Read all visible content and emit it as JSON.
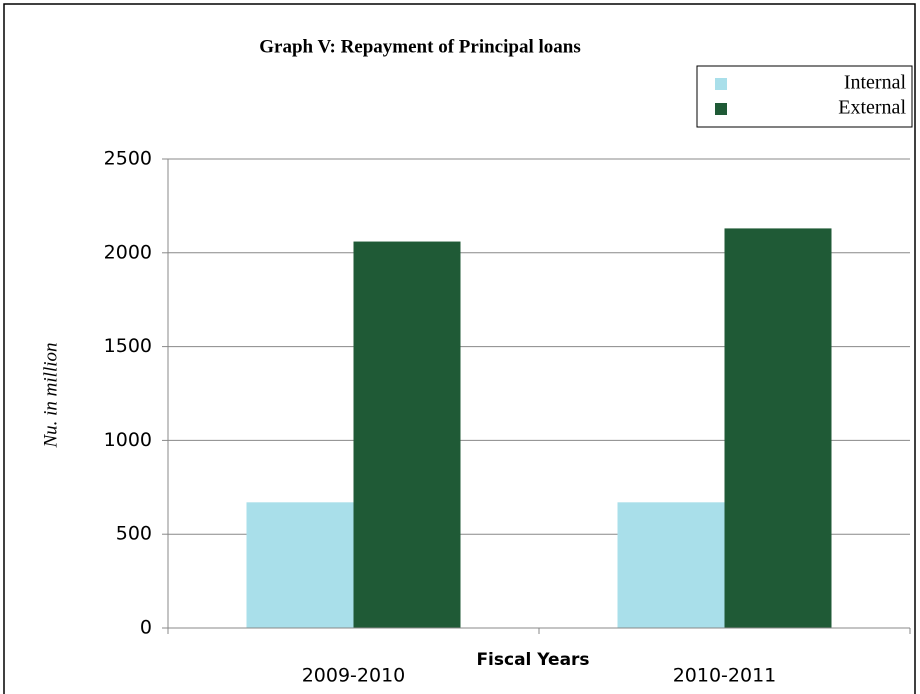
{
  "chart_data": {
    "type": "bar",
    "title": "Graph V: Repayment of Principal loans",
    "x_label": "Fiscal Years",
    "y_label": "Nu. in million",
    "categories": [
      "2009-2010",
      "2010-2011"
    ],
    "series": [
      {
        "name": "Internal",
        "color": "#a9dfea",
        "values": [
          670,
          670
        ]
      },
      {
        "name": "External",
        "color": "#1f5a36",
        "values": [
          2060,
          2130
        ]
      }
    ],
    "ylim": [
      0,
      2500
    ],
    "yticks": [
      0,
      500,
      1000,
      1500,
      2000,
      2500
    ],
    "grid": true,
    "legend": "top-right"
  }
}
